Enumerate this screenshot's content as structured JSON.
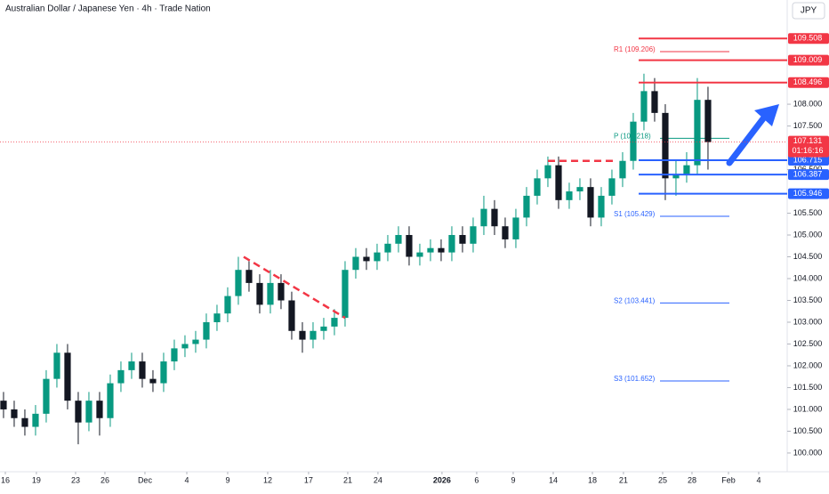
{
  "chart_data": {
    "type": "candlestick",
    "title": "Australian Dollar / Japanese Yen · 4h · Trade Nation",
    "currency": "JPY",
    "up_color": "#089981",
    "down_color": "#131722",
    "open": [
      101.2,
      101.0,
      100.8,
      100.6,
      100.9,
      101.7,
      102.3,
      101.2,
      100.7,
      101.2,
      100.8,
      101.6,
      101.9,
      102.1,
      101.7,
      101.6,
      102.1,
      102.4,
      102.5,
      102.6,
      103.0,
      103.2,
      103.6,
      104.2,
      103.9,
      103.4,
      103.9,
      103.5,
      102.8,
      102.6,
      102.8,
      102.9,
      103.1,
      104.2,
      104.5,
      104.4,
      104.6,
      104.8,
      105.0,
      104.5,
      104.6,
      104.7,
      104.6,
      105.0,
      104.8,
      105.2,
      105.6,
      105.2,
      104.9,
      105.4,
      105.9,
      106.3,
      106.6,
      105.8,
      106.0,
      106.1,
      105.4,
      105.9,
      106.3,
      106.7,
      107.6,
      108.3,
      107.8,
      106.3,
      106.4,
      106.6,
      108.1
    ],
    "high": [
      101.4,
      101.2,
      101.0,
      101.1,
      101.9,
      102.5,
      102.5,
      101.4,
      101.4,
      101.4,
      101.8,
      102.1,
      102.3,
      102.3,
      101.9,
      102.3,
      102.6,
      102.7,
      102.8,
      103.2,
      103.4,
      103.8,
      104.5,
      104.4,
      104.1,
      104.2,
      104.1,
      103.7,
      103.0,
      103.0,
      103.1,
      103.3,
      104.4,
      104.7,
      104.7,
      104.8,
      105.0,
      105.2,
      105.2,
      104.8,
      104.9,
      104.9,
      105.2,
      105.2,
      105.4,
      105.9,
      105.8,
      105.4,
      105.6,
      106.1,
      106.5,
      106.8,
      106.8,
      106.2,
      106.3,
      106.3,
      106.1,
      106.5,
      106.9,
      107.8,
      108.7,
      108.6,
      108.0,
      106.7,
      106.9,
      108.6,
      108.4
    ],
    "low": [
      100.8,
      100.6,
      100.4,
      100.4,
      100.7,
      101.5,
      101.0,
      100.2,
      100.5,
      100.4,
      100.6,
      101.4,
      101.7,
      101.5,
      101.4,
      101.4,
      101.9,
      102.2,
      102.3,
      102.4,
      102.8,
      103.0,
      103.4,
      103.7,
      103.2,
      103.2,
      103.3,
      102.6,
      102.3,
      102.4,
      102.6,
      102.7,
      102.9,
      104.0,
      104.2,
      104.2,
      104.4,
      104.6,
      104.3,
      104.3,
      104.4,
      104.4,
      104.4,
      104.6,
      104.6,
      105.0,
      105.0,
      104.7,
      104.7,
      105.2,
      105.7,
      106.1,
      105.6,
      105.6,
      105.8,
      105.2,
      105.2,
      105.7,
      106.1,
      106.5,
      107.4,
      107.6,
      105.8,
      105.9,
      106.2,
      106.4,
      106.5
    ],
    "close": [
      101.0,
      100.8,
      100.6,
      100.9,
      101.7,
      102.3,
      101.2,
      100.7,
      101.2,
      100.8,
      101.6,
      101.9,
      102.1,
      101.7,
      101.6,
      102.1,
      102.4,
      102.5,
      102.6,
      103.0,
      103.2,
      103.6,
      104.2,
      103.9,
      103.4,
      103.9,
      103.5,
      102.8,
      102.6,
      102.8,
      102.9,
      103.1,
      104.2,
      104.5,
      104.4,
      104.6,
      104.8,
      105.0,
      104.5,
      104.6,
      104.7,
      104.6,
      105.0,
      104.8,
      105.2,
      105.6,
      105.2,
      104.9,
      105.4,
      105.9,
      106.3,
      106.6,
      105.8,
      106.0,
      106.1,
      105.4,
      105.9,
      106.3,
      106.7,
      107.6,
      108.3,
      107.8,
      106.3,
      106.4,
      106.6,
      108.1,
      107.131
    ],
    "xlim": [
      -0.33,
      73.42
    ],
    "xticks": [
      {
        "value": 0.17,
        "label": "16"
      },
      {
        "value": 3.08,
        "label": "19"
      },
      {
        "value": 6.75,
        "label": "23"
      },
      {
        "value": 9.5,
        "label": "26"
      },
      {
        "value": 13.25,
        "label": "Dec"
      },
      {
        "value": 17.17,
        "label": "4"
      },
      {
        "value": 21,
        "label": "9"
      },
      {
        "value": 24.75,
        "label": "12"
      },
      {
        "value": 28.58,
        "label": "17"
      },
      {
        "value": 32.25,
        "label": "21"
      },
      {
        "value": 35.08,
        "label": "24"
      },
      {
        "value": 41.08,
        "label": "2026"
      },
      {
        "value": 44.33,
        "label": "6"
      },
      {
        "value": 47.75,
        "label": "9"
      },
      {
        "value": 51.5,
        "label": "14"
      },
      {
        "value": 55.17,
        "label": "18"
      },
      {
        "value": 58.08,
        "label": "21"
      },
      {
        "value": 61.75,
        "label": "25"
      },
      {
        "value": 64.5,
        "label": "28"
      },
      {
        "value": 67.92,
        "label": "Feb"
      },
      {
        "value": 70.75,
        "label": "4"
      }
    ],
    "ylim": [
      99.57,
      110.39
    ],
    "yticks": [
      {
        "value": 100,
        "label": "100.000"
      },
      {
        "value": 100.5,
        "label": "100.500"
      },
      {
        "value": 101,
        "label": "101.000"
      },
      {
        "value": 101.5,
        "label": "101.500"
      },
      {
        "value": 102,
        "label": "102.000"
      },
      {
        "value": 102.5,
        "label": "102.500"
      },
      {
        "value": 103,
        "label": "103.000"
      },
      {
        "value": 103.5,
        "label": "103.500"
      },
      {
        "value": 104,
        "label": "104.000"
      },
      {
        "value": 104.5,
        "label": "104.500"
      },
      {
        "value": 105,
        "label": "105.000"
      },
      {
        "value": 105.5,
        "label": "105.500"
      },
      {
        "value": 106.5,
        "label": "106.500"
      },
      {
        "value": 107.5,
        "label": "107.500"
      },
      {
        "value": 108,
        "label": "108.000"
      }
    ],
    "levels": [
      {
        "value": 109.508,
        "color": "#f23645"
      },
      {
        "value": 109.009,
        "color": "#f23645"
      },
      {
        "value": 108.496,
        "color": "#f23645"
      },
      {
        "value": 106.715,
        "color": "#2962ff"
      },
      {
        "value": 106.387,
        "color": "#2962ff"
      },
      {
        "value": 105.946,
        "color": "#2962ff"
      }
    ],
    "pivots": [
      {
        "value": 109.206,
        "label": "R1 (109.206)",
        "color": "#f23645"
      },
      {
        "value": 107.218,
        "label": "P (107.218)",
        "color": "#089981"
      },
      {
        "value": 105.429,
        "label": "S1 (105.429)",
        "color": "#2962ff"
      },
      {
        "value": 103.441,
        "label": "S2 (103.441)",
        "color": "#2962ff"
      },
      {
        "value": 101.652,
        "label": "S3 (101.652)",
        "color": "#2962ff"
      }
    ],
    "trendlines": [
      {
        "x": [
          22.5,
          32
        ],
        "y": [
          104.5,
          103.1
        ],
        "color": "#f23645"
      },
      {
        "x": [
          51,
          57.2
        ],
        "y": [
          106.7,
          106.7
        ],
        "color": "#f23645"
      }
    ],
    "current_price": {
      "value": 107.131,
      "countdown": "01:16:16",
      "color": "#f23645"
    }
  }
}
